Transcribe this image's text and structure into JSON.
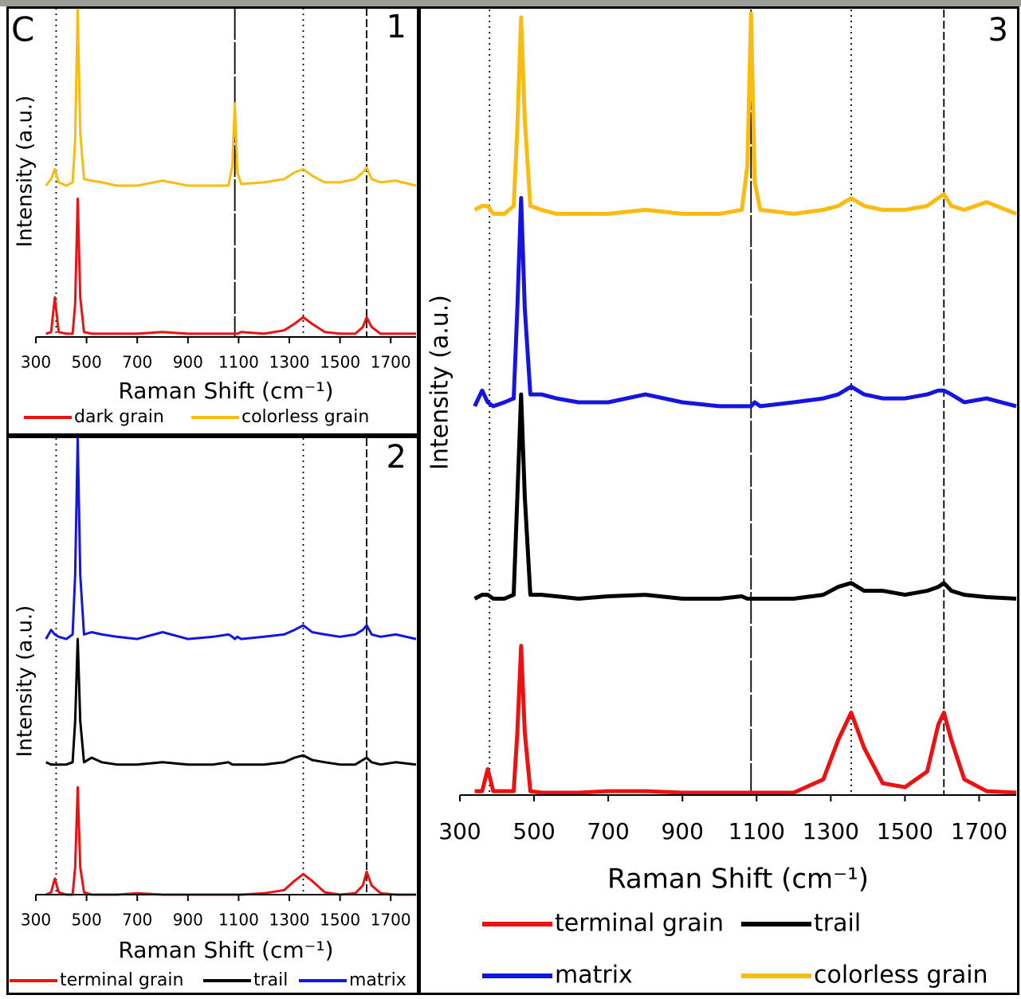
{
  "figure_label": "C",
  "chart_data": [
    {
      "type": "line",
      "panel_label": "1",
      "x_label": "Raman Shift (cm⁻¹)",
      "y_label": "Intensity (a.u.)",
      "xlim": [
        300,
        1800
      ],
      "ylim": [
        0,
        100
      ],
      "xticks": [
        300,
        500,
        700,
        900,
        1100,
        1300,
        1500,
        1700
      ],
      "reference_lines": [
        {
          "x": 380,
          "style": "dotted"
        },
        {
          "x": 1085,
          "style": "solid"
        },
        {
          "x": 1355,
          "style": "dotted"
        },
        {
          "x": 1605,
          "style": "dashed"
        }
      ],
      "x": [
        340,
        360,
        375,
        390,
        420,
        445,
        455,
        465,
        475,
        490,
        520,
        560,
        620,
        700,
        800,
        900,
        1000,
        1060,
        1075,
        1085,
        1095,
        1110,
        1200,
        1280,
        1320,
        1355,
        1390,
        1440,
        1500,
        1560,
        1590,
        1605,
        1625,
        1660,
        1720,
        1800
      ],
      "series": [
        {
          "name": "dark grain",
          "color": "#ee1111",
          "values": [
            1,
            1.5,
            12,
            1.5,
            1,
            1,
            10,
            42,
            12,
            1.5,
            1,
            1,
            1,
            1,
            1.5,
            1,
            1,
            1,
            1,
            1,
            1,
            1.5,
            1,
            2,
            4,
            6,
            4,
            1.5,
            1,
            1,
            3,
            6,
            3,
            1,
            1,
            1
          ]
        },
        {
          "name": "colorless grain",
          "color": "#fbbb10",
          "values": [
            46,
            48,
            51,
            47,
            46,
            47,
            60,
            99.5,
            62,
            48,
            47.5,
            47,
            46,
            46,
            47.5,
            46,
            46,
            46,
            52,
            71,
            50,
            46.5,
            47,
            48,
            50,
            51,
            49,
            47,
            47,
            48,
            50,
            51.5,
            48,
            47,
            47.5,
            46
          ]
        }
      ]
    },
    {
      "type": "line",
      "panel_label": "2",
      "x_label": "Raman Shift (cm⁻¹)",
      "y_label": "Intensity (a.u.)",
      "xlim": [
        300,
        1800
      ],
      "ylim": [
        0,
        100
      ],
      "xticks": [
        300,
        500,
        700,
        900,
        1100,
        1300,
        1500,
        1700
      ],
      "reference_lines": [
        {
          "x": 380,
          "style": "dotted"
        },
        {
          "x": 1355,
          "style": "dotted"
        },
        {
          "x": 1605,
          "style": "dashed"
        }
      ],
      "x": [
        340,
        360,
        375,
        390,
        420,
        445,
        455,
        465,
        475,
        490,
        520,
        560,
        620,
        700,
        800,
        900,
        1000,
        1060,
        1075,
        1085,
        1095,
        1110,
        1200,
        1280,
        1320,
        1355,
        1390,
        1440,
        1500,
        1560,
        1590,
        1605,
        1625,
        1660,
        1720,
        1800
      ],
      "series": [
        {
          "name": "terminal grain",
          "color": "#ee1111",
          "values": [
            0,
            0.5,
            3.5,
            0.5,
            0,
            0,
            6,
            23.5,
            6,
            0.5,
            0,
            0,
            0,
            0.3,
            0,
            0,
            0,
            0,
            0,
            0,
            0,
            0,
            0.3,
            1,
            3,
            4.5,
            3,
            0.5,
            0,
            0.3,
            2,
            5,
            2,
            0.3,
            0,
            0
          ]
        },
        {
          "name": "trail",
          "color": "#000000",
          "values": [
            29,
            28.5,
            28.5,
            28.5,
            28.5,
            29,
            38,
            56,
            38,
            29,
            30,
            29,
            28.5,
            28.5,
            29,
            28.5,
            28.5,
            29,
            28.5,
            28.5,
            28.5,
            28.5,
            28.5,
            29,
            30,
            30.5,
            29.5,
            29,
            28.5,
            28.5,
            29.5,
            30,
            29,
            28.5,
            29,
            28.5
          ]
        },
        {
          "name": "matrix",
          "color": "#1515e0",
          "values": [
            56,
            58,
            57,
            56.5,
            56,
            57,
            70,
            100,
            70,
            57,
            57.5,
            57,
            56.5,
            56,
            57.5,
            56,
            56.5,
            57,
            56.5,
            56,
            56.5,
            56,
            56.5,
            57,
            58,
            59,
            57.5,
            57,
            56.5,
            57,
            58,
            59,
            57,
            56.5,
            57,
            56
          ]
        }
      ]
    },
    {
      "type": "line",
      "panel_label": "3",
      "x_label": "Raman Shift (cm⁻¹)",
      "y_label": "Intensity (a.u.)",
      "xlim": [
        300,
        1800
      ],
      "ylim": [
        0,
        100
      ],
      "xticks": [
        300,
        500,
        700,
        900,
        1100,
        1300,
        1500,
        1700
      ],
      "reference_lines": [
        {
          "x": 380,
          "style": "dotted"
        },
        {
          "x": 1085,
          "style": "solid"
        },
        {
          "x": 1355,
          "style": "dotted"
        },
        {
          "x": 1605,
          "style": "dashed"
        }
      ],
      "x": [
        340,
        360,
        375,
        390,
        420,
        445,
        455,
        465,
        475,
        490,
        520,
        560,
        620,
        700,
        800,
        900,
        1000,
        1060,
        1075,
        1085,
        1095,
        1110,
        1200,
        1280,
        1320,
        1355,
        1390,
        1440,
        1500,
        1560,
        1590,
        1605,
        1625,
        1660,
        1720,
        1800
      ],
      "series": [
        {
          "name": "terminal grain",
          "color": "#ee1111",
          "values": [
            0.5,
            0.5,
            3.3,
            0.5,
            0.5,
            0.5,
            8,
            19,
            8,
            0.5,
            0.3,
            0.3,
            0.3,
            0.5,
            0.5,
            0.3,
            0.3,
            0.3,
            0.3,
            0.3,
            0.3,
            0.3,
            0.3,
            2,
            7,
            10.5,
            6,
            1.5,
            1,
            3,
            9,
            10.5,
            7,
            2,
            0.5,
            0.3
          ]
        },
        {
          "name": "trail",
          "color": "#000000",
          "values": [
            25,
            25.5,
            25.5,
            25,
            25,
            25.5,
            38,
            51,
            38,
            25.5,
            25.5,
            25.3,
            25,
            25.3,
            25.5,
            25,
            25,
            25.3,
            25,
            25,
            25,
            25,
            25,
            25.5,
            26.5,
            27,
            26,
            26,
            25.5,
            26,
            26.5,
            27,
            26,
            25.5,
            25.2,
            25
          ]
        },
        {
          "name": "matrix",
          "color": "#1515e0",
          "values": [
            49.5,
            51.5,
            50,
            49.5,
            50,
            50.5,
            62,
            76,
            62,
            51,
            51,
            50.5,
            50,
            50,
            51,
            50,
            49.5,
            49.5,
            49.5,
            49.5,
            50,
            49.5,
            50,
            50.5,
            51,
            52,
            51,
            50.5,
            50.5,
            51,
            51.5,
            51.5,
            51,
            50,
            50.5,
            49.5
          ]
        },
        {
          "name": "colorless grain",
          "color": "#fbbb10",
          "values": [
            74.5,
            75,
            75,
            74,
            74,
            75,
            85,
            99,
            86,
            75,
            74.5,
            74,
            74,
            74,
            74.5,
            74,
            74,
            74.5,
            80,
            99.5,
            78,
            74.5,
            74,
            74.5,
            75,
            76,
            75,
            74.5,
            74.5,
            75,
            76,
            76.5,
            75,
            74.5,
            75.5,
            74
          ]
        }
      ]
    }
  ]
}
